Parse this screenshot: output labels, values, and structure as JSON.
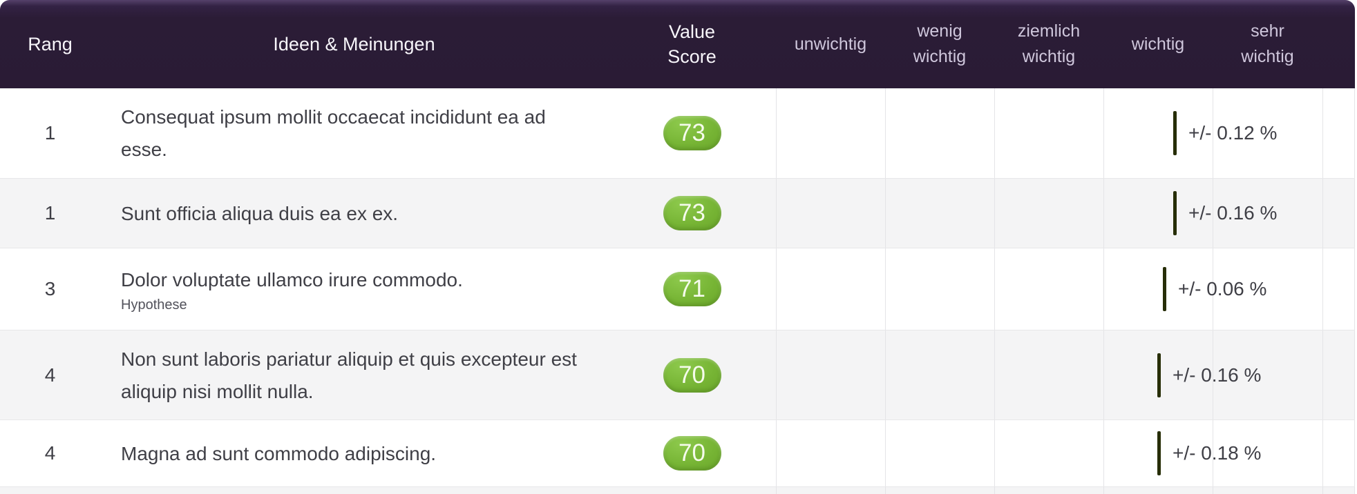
{
  "header": {
    "rank": "Rang",
    "idea": "Ideen & Meinungen",
    "score": "Value Score",
    "scale": [
      "unwichtig",
      "wenig wichtig",
      "ziemlich wichtig",
      "wichtig",
      "sehr wichtig"
    ]
  },
  "rows": [
    {
      "rank": "1",
      "text": "Consequat ipsum mollit occaecat incididunt ea ad esse.",
      "subtitle": null,
      "score": "73",
      "error_label": "+/- 0.12 %",
      "tick_x": 1700
    },
    {
      "rank": "1",
      "text": "Sunt officia aliqua duis ea ex ex.",
      "subtitle": null,
      "score": "73",
      "error_label": "+/- 0.16 %",
      "tick_x": 1700
    },
    {
      "rank": "3",
      "text": "Dolor voluptate ullamco irure commodo.",
      "subtitle": "Hypothese",
      "score": "71",
      "error_label": "+/- 0.06 %",
      "tick_x": 1685
    },
    {
      "rank": "4",
      "text": "Non sunt laboris pariatur aliquip et quis excepteur est aliquip nisi mollit nulla.",
      "subtitle": null,
      "score": "70",
      "error_label": "+/- 0.16 %",
      "tick_x": 1677
    },
    {
      "rank": "4",
      "text": "Magna ad sunt commodo adipiscing.",
      "subtitle": null,
      "score": "70",
      "error_label": "+/- 0.18 %",
      "tick_x": 1677
    }
  ],
  "colors": {
    "header_bg": "#2a1b35",
    "header_text": "#f7f5fa",
    "scale_label_text": "#cfc7dc",
    "row_alt_bg": "#f4f4f5",
    "grid_line": "#e4e4e7",
    "body_text": "#3f3f46",
    "subtitle_text": "#52525b",
    "score_pill_green": "#74b233",
    "tick_olive": "#272e07"
  }
}
